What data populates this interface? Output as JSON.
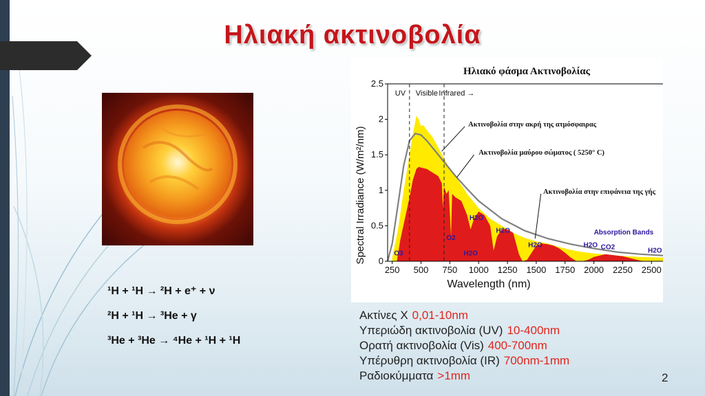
{
  "slide": {
    "title": "Ηλιακή ακτινοβολία",
    "page_number": "2"
  },
  "equations": [
    "¹H + ¹H → ²H + e⁺ + ν",
    "²H + ¹H → ³He + γ",
    "³He + ³He → ⁴He + ¹H + ¹H"
  ],
  "radiation_list": [
    {
      "name": "Ακτίνες Χ",
      "range": "0,01-10nm"
    },
    {
      "name": "Υπεριώδη ακτινοβολία (UV)",
      "range": "10-400nm"
    },
    {
      "name": "Ορατή ακτινοβολία (Vis)",
      "range": "400-700nm"
    },
    {
      "name": "Υπέρυθρη ακτινοβολία (IR)",
      "range": "700nm-1mm"
    },
    {
      "name": "Ραδιοκύμματα",
      "range": ">1mm"
    }
  ],
  "colors": {
    "title": "#c4161c",
    "highlight": "#e3241b",
    "top_of_atmosphere": "#ffea00",
    "surface": "#e01b1b",
    "blackbody": "#808080",
    "absorption_label": "#2b1a9c"
  },
  "chart_data": {
    "type": "area",
    "title": "Ηλιακό φάσμα Ακτινοβολίας",
    "xlabel": "Wavelength (nm)",
    "ylabel": "Spectral Irradiance (W/m²/nm)",
    "xlim": [
      210,
      2600
    ],
    "ylim": [
      0,
      2.5
    ],
    "x_ticks": [
      "250",
      "500",
      "750",
      "1000",
      "1250",
      "1500",
      "1750",
      "2000",
      "2250",
      "2500"
    ],
    "y_ticks": [
      "0",
      "0.5",
      "1",
      "1.5",
      "2",
      "2.5"
    ],
    "grid": false,
    "regions": [
      {
        "label": "UV",
        "x": 320
      },
      {
        "label": "Visible",
        "x": 550
      },
      {
        "label": "Infrared",
        "x": 810,
        "arrow": "→"
      }
    ],
    "region_boundaries": [
      400,
      700
    ],
    "series": [
      {
        "name": "Ακτινοβολία στην ακρή της ατμόσφαιρας",
        "x": [
          250,
          300,
          350,
          400,
          430,
          460,
          480,
          500,
          520,
          550,
          600,
          650,
          700,
          750,
          800,
          900,
          1000,
          1100,
          1200,
          1300,
          1400,
          1500,
          1600,
          1700,
          1800,
          1900,
          2000,
          2200,
          2400,
          2600
        ],
        "y": [
          0.05,
          0.45,
          1.0,
          1.5,
          1.8,
          2.05,
          2.0,
          1.9,
          1.92,
          1.85,
          1.75,
          1.6,
          1.45,
          1.3,
          1.2,
          0.95,
          0.75,
          0.6,
          0.5,
          0.4,
          0.33,
          0.28,
          0.25,
          0.2,
          0.16,
          0.13,
          0.11,
          0.08,
          0.06,
          0.05
        ]
      },
      {
        "name": "Ακτινοβολία μαύρου σώματος ( 5250° C)",
        "x": [
          210,
          250,
          300,
          350,
          400,
          450,
          500,
          550,
          600,
          700,
          800,
          900,
          1000,
          1200,
          1400,
          1600,
          1800,
          2000,
          2200,
          2400,
          2600
        ],
        "y": [
          0.0,
          0.25,
          0.8,
          1.35,
          1.7,
          1.8,
          1.78,
          1.7,
          1.6,
          1.4,
          1.2,
          1.02,
          0.85,
          0.6,
          0.43,
          0.32,
          0.24,
          0.18,
          0.13,
          0.1,
          0.08
        ]
      },
      {
        "name": "Ακτινοβολία στην επιφάνεια της γής",
        "x": [
          290,
          320,
          360,
          400,
          430,
          460,
          480,
          500,
          550,
          600,
          650,
          680,
          690,
          700,
          720,
          740,
          760,
          770,
          800,
          850,
          900,
          930,
          960,
          1000,
          1050,
          1100,
          1130,
          1160,
          1200,
          1250,
          1300,
          1350,
          1380,
          1420,
          1500,
          1550,
          1600,
          1650,
          1700,
          1750,
          1800,
          1850,
          1900,
          1950,
          2000,
          2050,
          2100,
          2150,
          2200,
          2250,
          2300,
          2350,
          2400,
          2450,
          2500,
          2550,
          2600
        ],
        "y": [
          0.0,
          0.3,
          0.6,
          0.9,
          1.15,
          1.3,
          1.33,
          1.32,
          1.3,
          1.25,
          1.2,
          1.1,
          0.75,
          1.05,
          0.95,
          1.0,
          0.35,
          0.95,
          0.9,
          0.85,
          0.65,
          0.45,
          0.6,
          0.7,
          0.65,
          0.5,
          0.15,
          0.35,
          0.45,
          0.45,
          0.4,
          0.1,
          0.0,
          0.02,
          0.22,
          0.25,
          0.24,
          0.22,
          0.18,
          0.12,
          0.05,
          0.0,
          0.0,
          0.02,
          0.06,
          0.08,
          0.1,
          0.09,
          0.08,
          0.07,
          0.05,
          0.03,
          0.01,
          0.0,
          0.0,
          0.0,
          0.0
        ]
      }
    ],
    "annotations": [
      {
        "text": "Ακτινοβολία στην ακρή της ατμόσφαιρας",
        "x": 910,
        "y": 1.9
      },
      {
        "text": "Ακτινοβολία μαύρου σώματος ( 5250° C)",
        "x": 1000,
        "y": 1.5
      },
      {
        "text": "Ακτινοβολία στην επιφάνεια της γής",
        "x": 1560,
        "y": 0.95
      },
      {
        "text": "Absorption Bands",
        "x": 2000,
        "y": 0.38
      },
      {
        "text": "O3",
        "x": 265,
        "y": 0.08
      },
      {
        "text": "O2",
        "x": 720,
        "y": 0.3
      },
      {
        "text": "H2O",
        "x": 920,
        "y": 0.58
      },
      {
        "text": "H2O",
        "x": 1150,
        "y": 0.4
      },
      {
        "text": "H2O",
        "x": 1430,
        "y": 0.2
      },
      {
        "text": "H2O",
        "x": 870,
        "y": 0.08
      },
      {
        "text": "H2O",
        "x": 1910,
        "y": 0.2
      },
      {
        "text": "CO2",
        "x": 2060,
        "y": 0.17
      },
      {
        "text": "H2O",
        "x": 2530,
        "y": 0.12
      }
    ]
  }
}
